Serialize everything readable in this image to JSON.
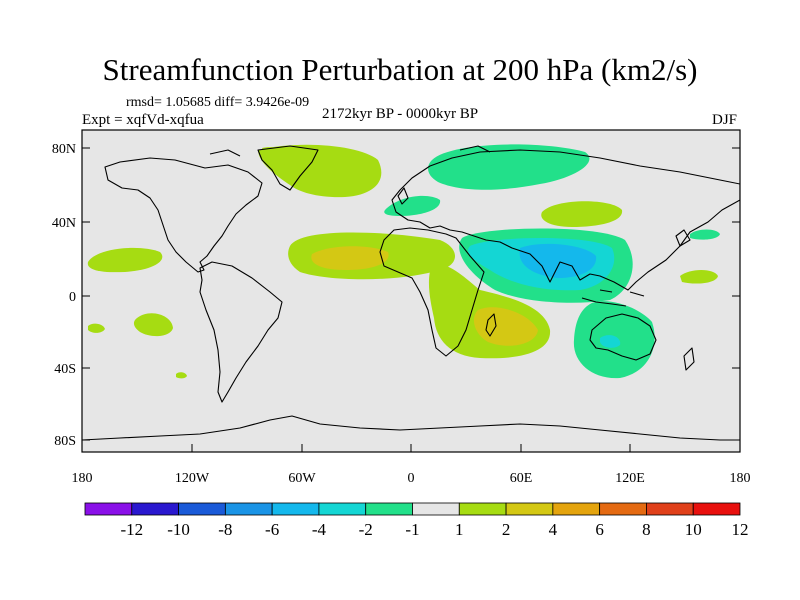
{
  "title": "Streamfunction Perturbation at 200 hPa (km2/s)",
  "stats": "rmsd= 1.05685 diff= 3.9426e-09",
  "experiment": "Expt = xqfVd-xqfua",
  "period": "2172kyr BP - 0000kyr BP",
  "season": "DJF",
  "lat_ticks": [
    "80N",
    "40N",
    "0",
    "40S",
    "80S"
  ],
  "lon_ticks": [
    "180",
    "120W",
    "60W",
    "0",
    "60E",
    "120E",
    "180"
  ],
  "colorbar": {
    "labels": [
      "-12",
      "-10",
      "-8",
      "-6",
      "-4",
      "-2",
      "-1",
      "1",
      "2",
      "4",
      "6",
      "8",
      "10",
      "12"
    ],
    "colors": [
      "#8a10e8",
      "#2a18cf",
      "#1a5ad8",
      "#1a94e6",
      "#14b8ec",
      "#14d6d4",
      "#22e08a",
      "#e6e6e6",
      "#a6dc12",
      "#d4c814",
      "#e4a40e",
      "#e46a12",
      "#e0401a",
      "#e8100e"
    ]
  },
  "colors": {
    "ocean": "#e6e6e6",
    "coast": "#000000"
  }
}
